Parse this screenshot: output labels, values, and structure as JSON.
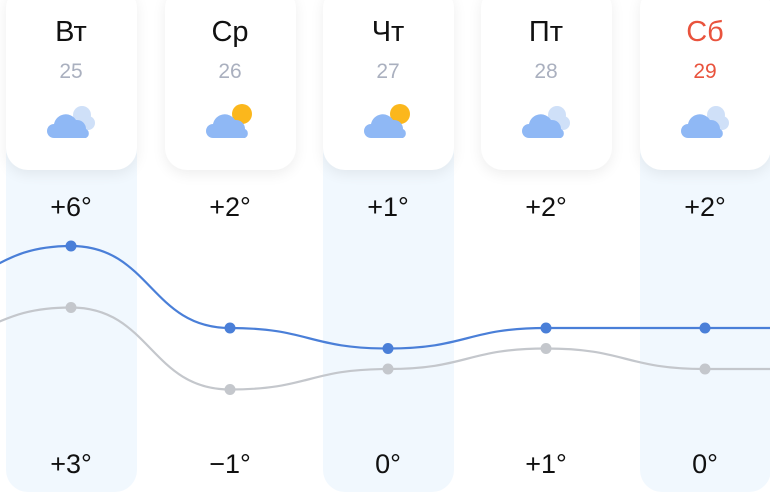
{
  "days": [
    {
      "dow": "Вт",
      "date": "25",
      "icon": "cloudy-icon",
      "max": "+6°",
      "min": "+3°",
      "max_value": 6,
      "min_value": 3,
      "weekend": false,
      "highlight": true
    },
    {
      "dow": "Ср",
      "date": "26",
      "icon": "partly-cloudy-icon",
      "max": "+2°",
      "min": "−1°",
      "max_value": 2,
      "min_value": -1,
      "weekend": false,
      "highlight": false
    },
    {
      "dow": "Чт",
      "date": "27",
      "icon": "partly-cloudy-icon",
      "max": "+1°",
      "min": "0°",
      "max_value": 1,
      "min_value": 0,
      "weekend": false,
      "highlight": true
    },
    {
      "dow": "Пт",
      "date": "28",
      "icon": "cloudy-icon",
      "max": "+2°",
      "min": "+1°",
      "max_value": 2,
      "min_value": 1,
      "weekend": false,
      "highlight": false
    },
    {
      "dow": "Сб",
      "date": "29",
      "icon": "cloudy-icon",
      "max": "+2°",
      "min": "0°",
      "max_value": 2,
      "min_value": 0,
      "weekend": true,
      "highlight": true
    }
  ],
  "colors": {
    "max_line": "#4a7fd8",
    "min_line": "#c4c7cc",
    "weekend": "#e9533d",
    "column_highlight": "#f1f8fe",
    "cloud": "#8fb8f5",
    "cloud_back": "#cfe0f8",
    "sun": "#fbb71c"
  }
}
